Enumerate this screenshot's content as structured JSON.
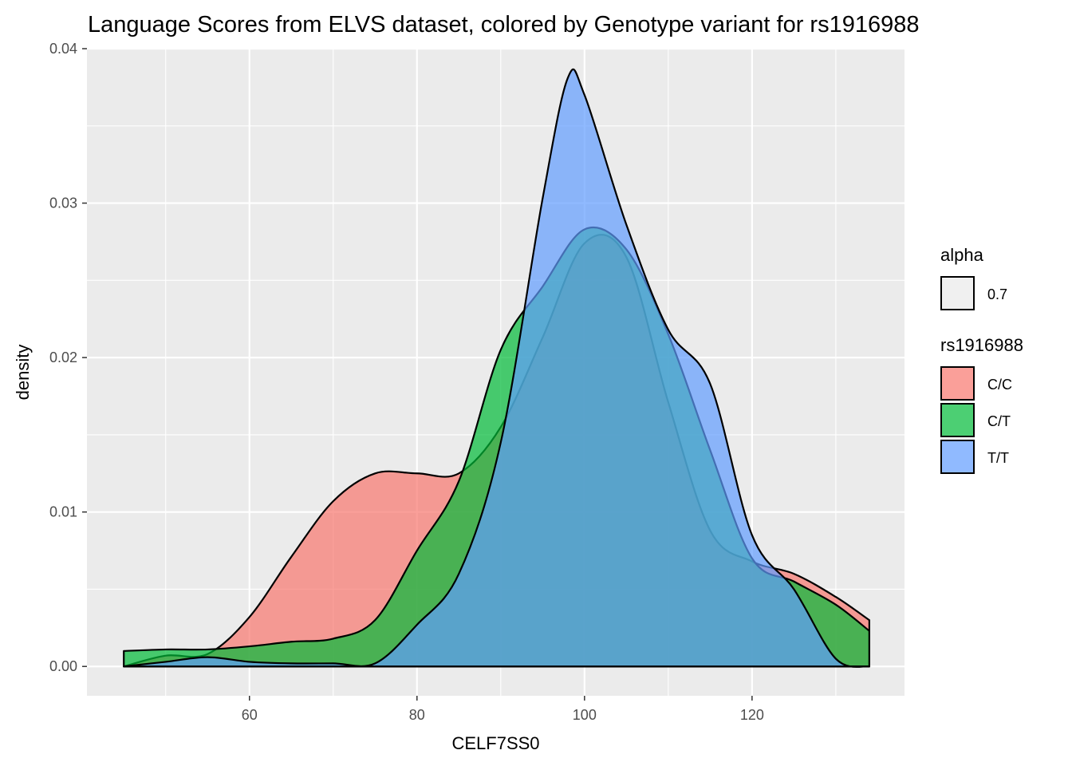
{
  "chart_data": {
    "type": "area",
    "title": "Language Scores from ELVS dataset, colored by Genotype variant for rs1916988",
    "xlabel": "CELF7SS0",
    "ylabel": "density",
    "xlim": [
      40.6,
      138.2
    ],
    "ylim": [
      -0.0019,
      0.04
    ],
    "x_ticks": [
      60,
      80,
      100,
      120
    ],
    "y_ticks": [
      0.0,
      0.01,
      0.02,
      0.03,
      0.04
    ],
    "y_tick_labels": [
      "0.00",
      "0.01",
      "0.02",
      "0.03",
      "0.04"
    ],
    "grid": true,
    "legend_position": "right",
    "alpha": 0.7,
    "legends": [
      {
        "title": "alpha",
        "entries": [
          {
            "label": "0.7",
            "color": "#f0f0f0"
          }
        ]
      },
      {
        "title": "rs1916988",
        "entries": [
          {
            "label": "C/C",
            "color": "#F8766D"
          },
          {
            "label": "C/T",
            "color": "#00BA38"
          },
          {
            "label": "T/T",
            "color": "#619CFF"
          }
        ]
      }
    ],
    "series": [
      {
        "name": "C/C",
        "color": "#F8766D",
        "x": [
          45,
          50,
          55,
          60,
          65,
          70,
          75,
          80,
          85,
          90,
          95,
          100,
          105,
          110,
          115,
          120,
          125,
          130,
          134
        ],
        "y": [
          0.0,
          0.0007,
          0.0008,
          0.0032,
          0.0071,
          0.0107,
          0.0125,
          0.0125,
          0.0125,
          0.0155,
          0.0213,
          0.0274,
          0.0265,
          0.0171,
          0.0088,
          0.0068,
          0.006,
          0.0045,
          0.003
        ]
      },
      {
        "name": "C/T",
        "color": "#00BA38",
        "x": [
          45,
          50,
          55,
          60,
          65,
          70,
          75,
          80,
          85,
          90,
          95,
          100,
          105,
          110,
          115,
          120,
          125,
          130,
          134
        ],
        "y": [
          0.001,
          0.0011,
          0.0011,
          0.0013,
          0.0016,
          0.0018,
          0.003,
          0.0075,
          0.012,
          0.0205,
          0.0246,
          0.0283,
          0.027,
          0.0215,
          0.014,
          0.007,
          0.0055,
          0.004,
          0.0023
        ]
      },
      {
        "name": "T/T",
        "color": "#619CFF",
        "x": [
          45,
          50,
          55,
          60,
          65,
          70,
          75,
          80,
          85,
          90,
          95,
          98,
          100,
          105,
          110,
          115,
          120,
          125,
          130,
          134
        ],
        "y": [
          0.0,
          0.0003,
          0.0006,
          0.0003,
          0.0002,
          0.0002,
          0.0002,
          0.0027,
          0.006,
          0.0145,
          0.0303,
          0.0381,
          0.037,
          0.0286,
          0.0218,
          0.0183,
          0.0085,
          0.005,
          0.0005,
          0.0
        ]
      }
    ]
  }
}
